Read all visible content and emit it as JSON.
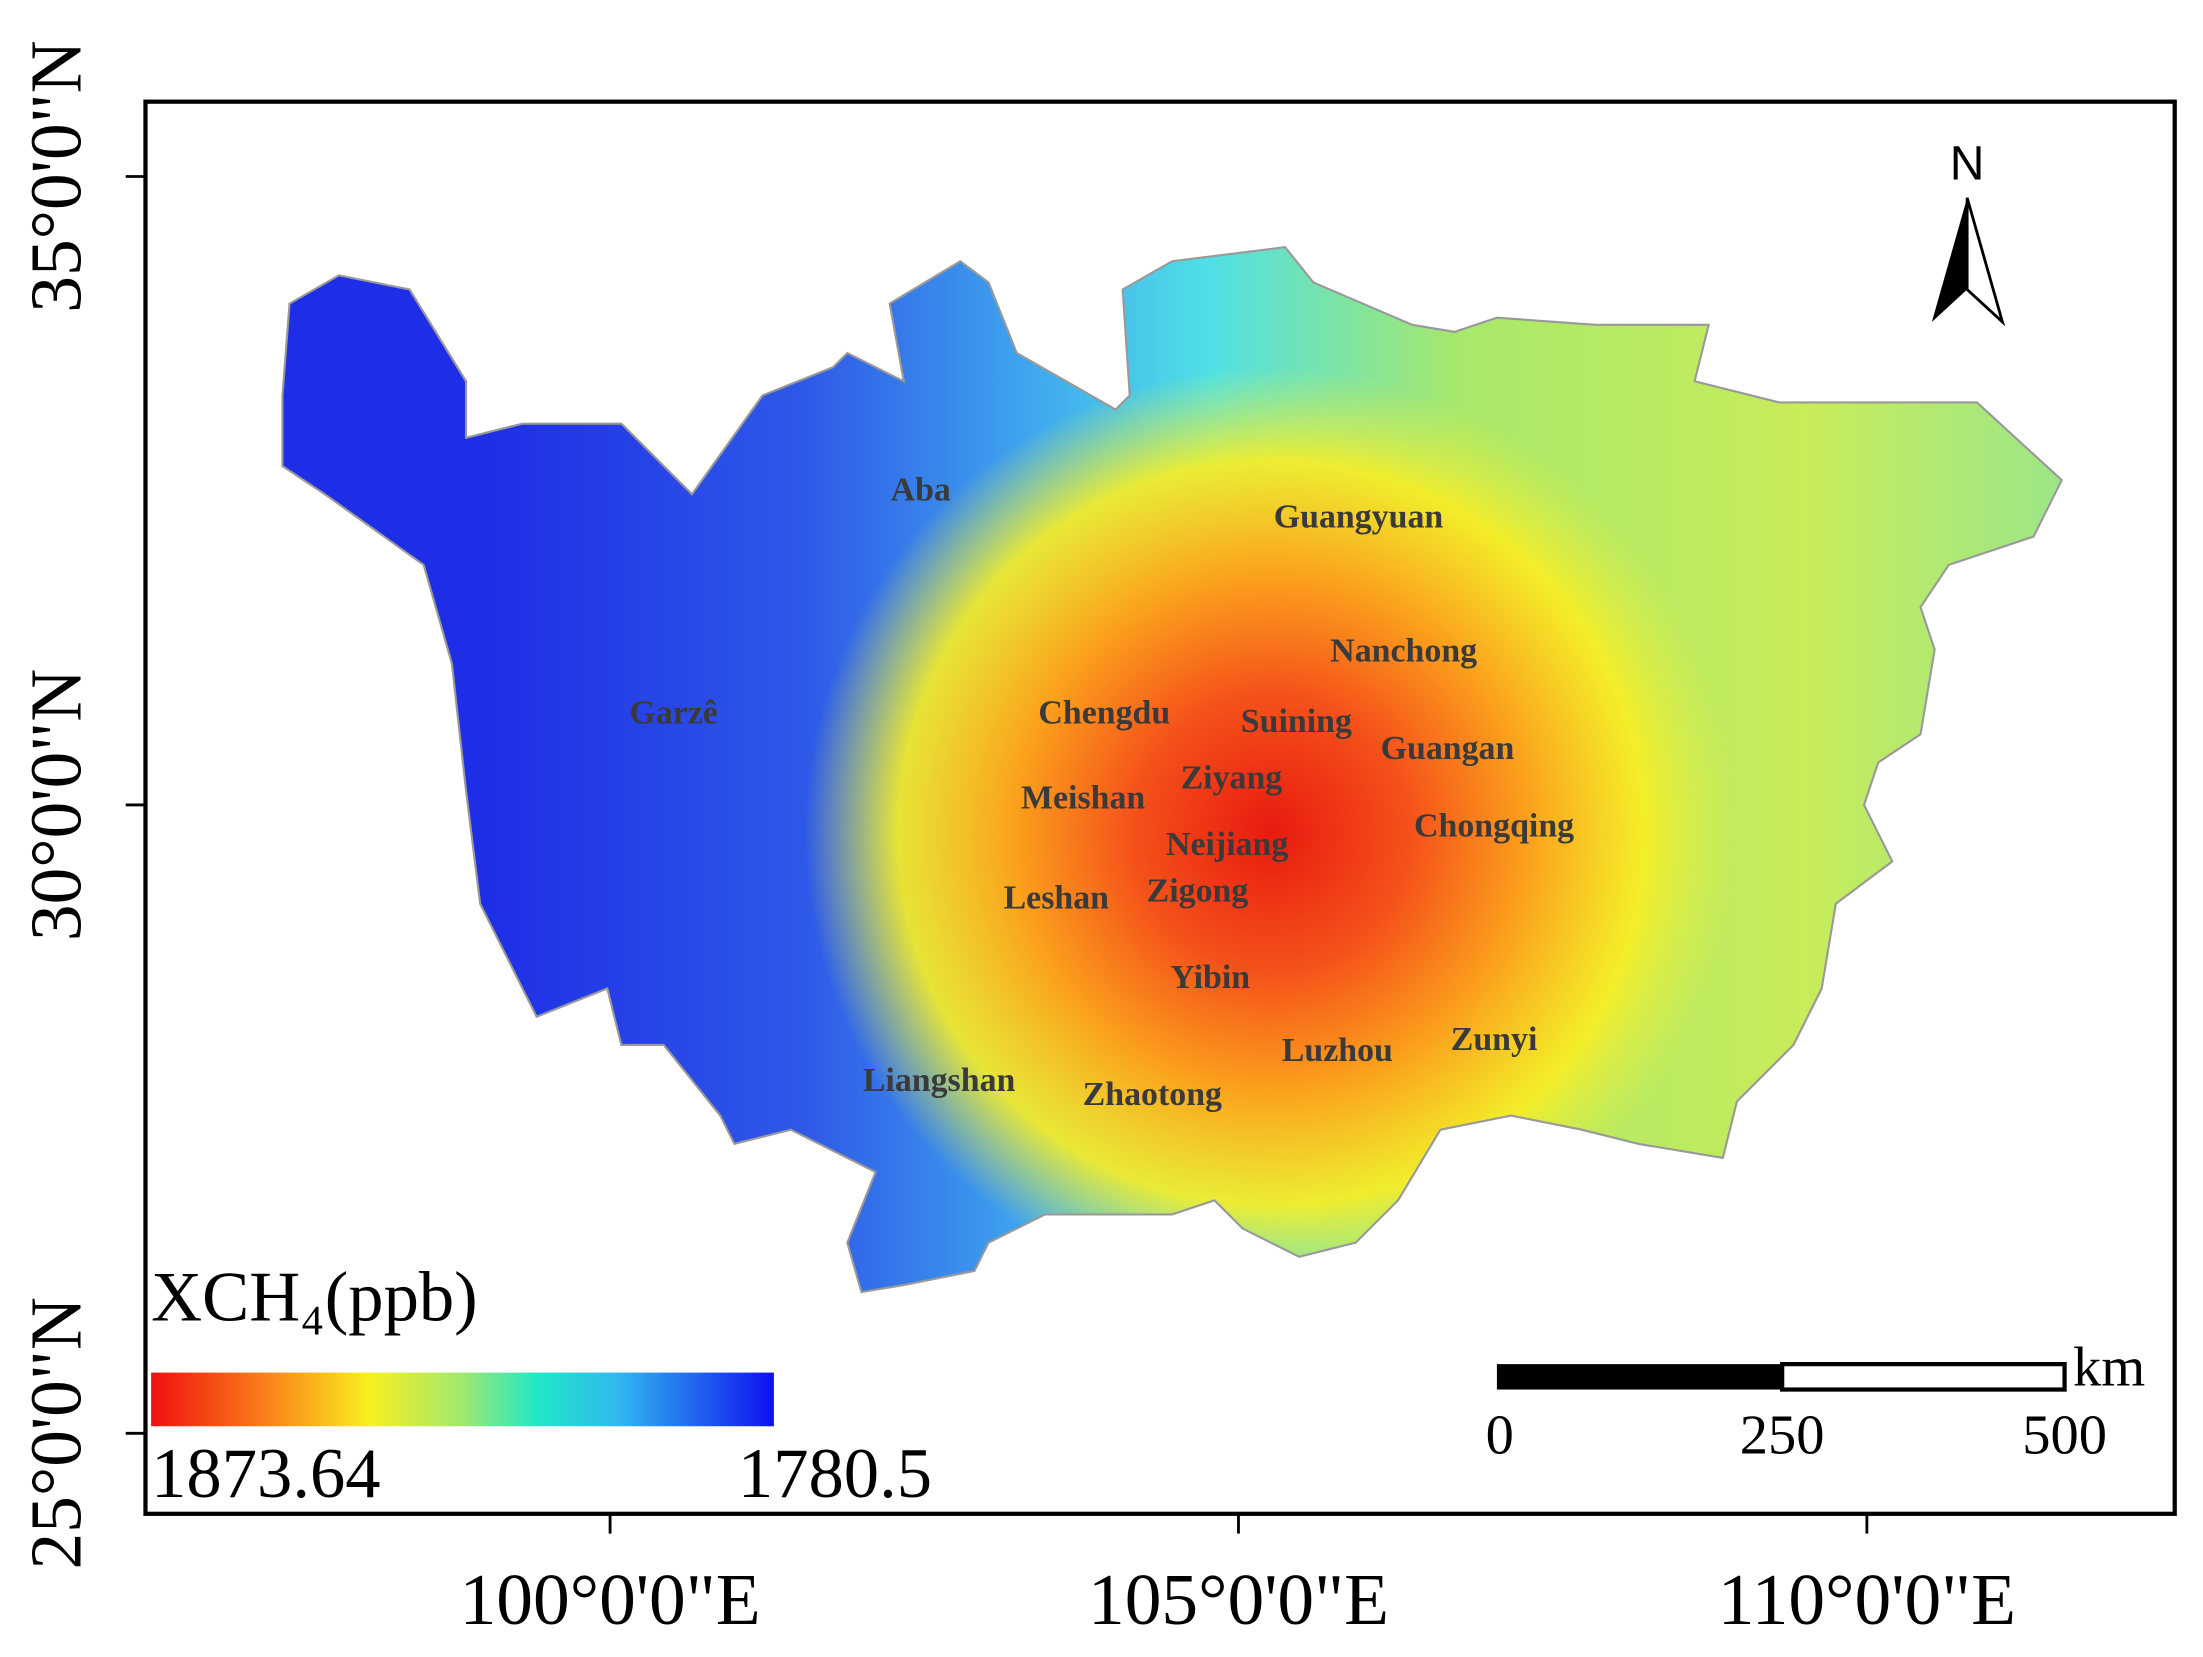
{
  "map": {
    "x_ticks": [
      {
        "value": 100,
        "label": "100°0'0\"E"
      },
      {
        "value": 105,
        "label": "105°0'0\"E"
      },
      {
        "value": 110,
        "label": "110°0'0\"E"
      }
    ],
    "y_ticks": [
      {
        "value": 35,
        "label": "35°0'0\"N"
      },
      {
        "value": 30,
        "label": "30°0'0\"N"
      },
      {
        "value": 25,
        "label": "25°0'0\"N"
      }
    ],
    "legend": {
      "title": "XCH₄(ppb)",
      "max_label": "1873.64",
      "min_label": "1780.5"
    },
    "scale_bar": {
      "unit": "km",
      "labels": [
        "0",
        "250",
        "500"
      ]
    },
    "north": "N",
    "regions": [
      "Aba",
      "Guangyuan",
      "Nanchong",
      "Garzê",
      "Chengdu",
      "Suining",
      "Guangan",
      "Ziyang",
      "Meishan",
      "Chongqing",
      "Neijiang",
      "Leshan",
      "Zigong",
      "Yibin",
      "Luzhou",
      "Zunyi",
      "Liangshan",
      "Zhaotong"
    ]
  }
}
